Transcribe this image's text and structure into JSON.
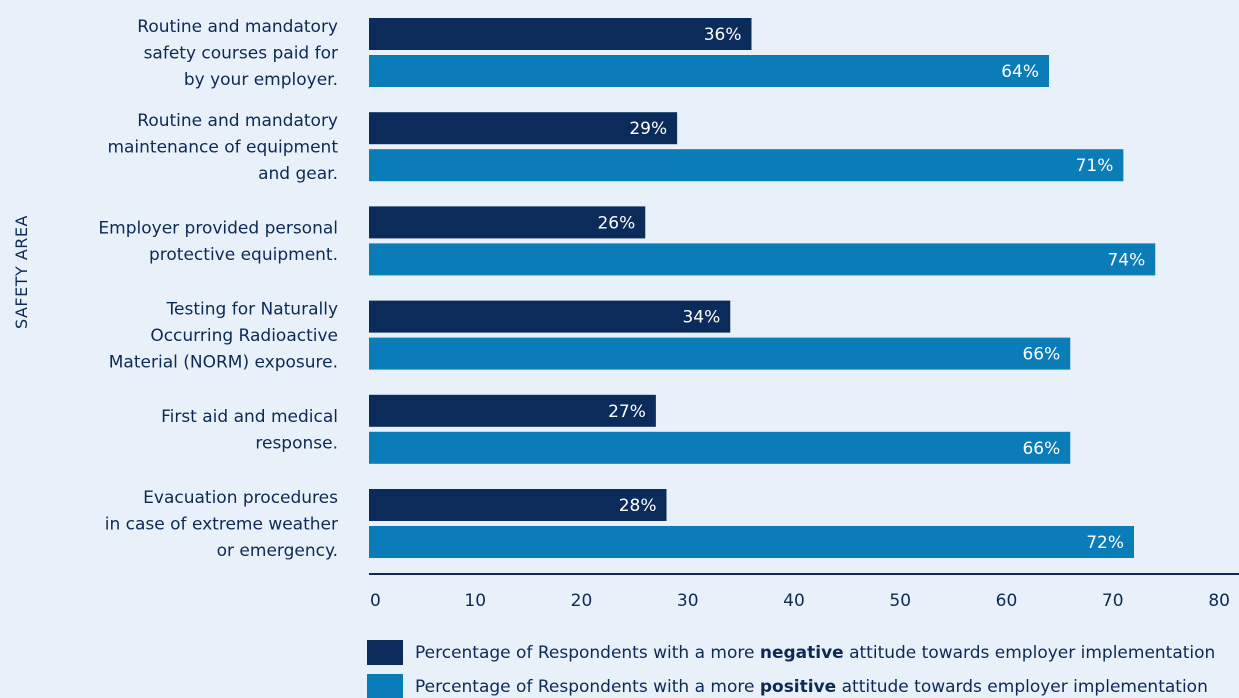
{
  "chart_data": {
    "type": "bar",
    "orientation": "horizontal",
    "ylabel": "SAFETY AREA",
    "xlabel": "",
    "xlim": [
      0,
      80
    ],
    "xticks": [
      0,
      10,
      20,
      30,
      40,
      50,
      60,
      70,
      80
    ],
    "value_suffix": "%",
    "grid": false,
    "legend_position": "bottom",
    "categories": [
      [
        "Routine and mandatory",
        "safety courses paid for",
        "by your employer."
      ],
      [
        "Routine and mandatory",
        "maintenance of equipment",
        "and gear."
      ],
      [
        "Employer provided personal",
        "protective equipment."
      ],
      [
        "Testing for Naturally",
        "Occurring Radioactive",
        "Material (NORM) exposure."
      ],
      [
        "First aid and medical",
        "response."
      ],
      [
        "Evacuation procedures",
        "in case of extreme weather",
        "or emergency."
      ]
    ],
    "series": [
      {
        "name": "Percentage of Respondents with a more negative attitude towards employer implementation",
        "legend_parts": [
          "Percentage of Respondents with a more ",
          "negative",
          " attitude towards employer implementation"
        ],
        "color": "#0b2c5a",
        "values": [
          36,
          29,
          26,
          34,
          27,
          28
        ]
      },
      {
        "name": "Percentage of Respondents with a more positive attitude towards employer implementation",
        "legend_parts": [
          "Percentage of Respondents with a more ",
          "positive",
          " attitude towards employer implementation"
        ],
        "color": "#0a7cb8",
        "values": [
          64,
          71,
          74,
          66,
          66,
          72
        ]
      }
    ],
    "axis_color": "#0c2a55",
    "background": "#e8f0f9"
  }
}
